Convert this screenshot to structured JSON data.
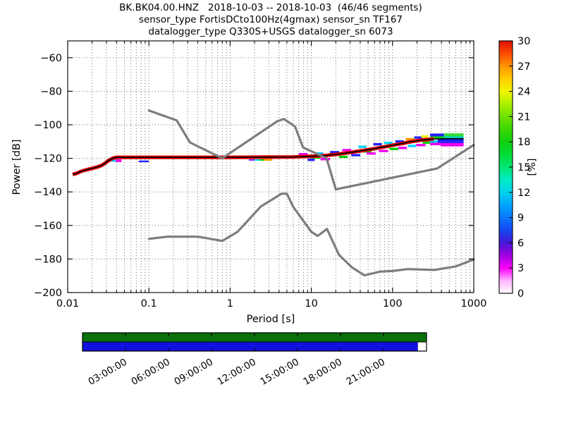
{
  "title": {
    "line1": "BK.BK04.00.HNZ   2018-10-03 -- 2018-10-03  (46/46 segments)",
    "line2": "sensor_type FortisDCto100Hz(4gmax) sensor_sn TF167",
    "line3": "datalogger_type Q330S+USGS datalogger_sn 6073"
  },
  "axes": {
    "xlabel": "Period [s]",
    "ylabel": "Power [dB]"
  },
  "colorbar": {
    "label": "[%]",
    "ticks": [
      0,
      3,
      6,
      9,
      12,
      15,
      18,
      21,
      24,
      27,
      30
    ],
    "gradient_stops": [
      {
        "v": 0.0,
        "c": "#ffffff"
      },
      {
        "v": 1.5,
        "c": "#ffb3ff"
      },
      {
        "v": 3.0,
        "c": "#fa00fa"
      },
      {
        "v": 4.5,
        "c": "#a000e0"
      },
      {
        "v": 6.0,
        "c": "#4616d6"
      },
      {
        "v": 7.5,
        "c": "#1446f0"
      },
      {
        "v": 9.0,
        "c": "#0a78ff"
      },
      {
        "v": 10.5,
        "c": "#00a2ff"
      },
      {
        "v": 12.0,
        "c": "#00d2eb"
      },
      {
        "v": 13.5,
        "c": "#00ebc3"
      },
      {
        "v": 15.0,
        "c": "#00e673"
      },
      {
        "v": 16.5,
        "c": "#00dc37"
      },
      {
        "v": 18.0,
        "c": "#0fd00f"
      },
      {
        "v": 19.5,
        "c": "#3cd700"
      },
      {
        "v": 21.0,
        "c": "#6ee100"
      },
      {
        "v": 22.5,
        "c": "#aaf000"
      },
      {
        "v": 24.0,
        "c": "#f5f500"
      },
      {
        "v": 25.5,
        "c": "#ffcd00"
      },
      {
        "v": 27.0,
        "c": "#ff9600"
      },
      {
        "v": 28.5,
        "c": "#ff4b00"
      },
      {
        "v": 30.0,
        "c": "#dc0f00"
      }
    ]
  },
  "chart_data": {
    "type": "heatmap",
    "title": "BK.BK04.00.HNZ PPSD 2018-10-03, 46/46 half-hour segments",
    "xlabel": "Period [s]",
    "ylabel": "Power [dB]",
    "xscale": "log",
    "xlim": [
      0.01,
      1000
    ],
    "ylim": [
      -200,
      -50
    ],
    "xticks": {
      "values": [
        0.01,
        0.1,
        1,
        10,
        100,
        1000
      ],
      "labels": [
        "0.01",
        "0.1",
        "1",
        "10",
        "100",
        "1000"
      ]
    },
    "yticks": {
      "values": [
        -60,
        -80,
        -100,
        -120,
        -140,
        -160,
        -180,
        -200
      ],
      "labels": [
        "−60",
        "−80",
        "−100",
        "−120",
        "−140",
        "−160",
        "−180",
        "−200"
      ]
    },
    "grid": true,
    "noise_models": {
      "color": "#7d7d7d",
      "nhnm": [
        [
          0.1,
          -91.5
        ],
        [
          0.22,
          -97.4
        ],
        [
          0.32,
          -110.5
        ],
        [
          0.8,
          -120.0
        ],
        [
          3.8,
          -97.9
        ],
        [
          4.6,
          -96.5
        ],
        [
          6.3,
          -101.0
        ],
        [
          7.9,
          -113.5
        ],
        [
          15.4,
          -120.0
        ],
        [
          20,
          -138.5
        ],
        [
          354.8,
          -126.0
        ],
        [
          1000,
          -112.0
        ]
      ],
      "nlnm": [
        [
          0.1,
          -168.0
        ],
        [
          0.17,
          -166.7
        ],
        [
          0.4,
          -166.7
        ],
        [
          0.8,
          -169.2
        ],
        [
          1.24,
          -163.7
        ],
        [
          2.4,
          -148.6
        ],
        [
          4.3,
          -141.1
        ],
        [
          5,
          -141.1
        ],
        [
          6,
          -149.0
        ],
        [
          10,
          -163.8
        ],
        [
          12,
          -166.2
        ],
        [
          15.6,
          -162.1
        ],
        [
          21.9,
          -177.5
        ],
        [
          31.6,
          -185.0
        ],
        [
          45,
          -189.7
        ],
        [
          70,
          -187.5
        ],
        [
          101,
          -187.1
        ],
        [
          154,
          -186.0
        ],
        [
          328,
          -186.5
        ],
        [
          600,
          -184.4
        ],
        [
          1000,
          -180.3
        ]
      ]
    },
    "mode_line": {
      "color": "#000000",
      "points": [
        [
          0.0115,
          -129.6
        ],
        [
          0.013,
          -128.9
        ],
        [
          0.0145,
          -127.8
        ],
        [
          0.016,
          -127.2
        ],
        [
          0.018,
          -126.5
        ],
        [
          0.02,
          -126.0
        ],
        [
          0.023,
          -125.2
        ],
        [
          0.026,
          -124.3
        ],
        [
          0.029,
          -122.8
        ],
        [
          0.032,
          -121.2
        ],
        [
          0.036,
          -119.9
        ],
        [
          0.04,
          -119.4
        ],
        [
          0.1,
          -119.4
        ],
        [
          1,
          -119.4
        ],
        [
          3,
          -119.3
        ],
        [
          6,
          -119.2
        ],
        [
          10,
          -118.8
        ],
        [
          15,
          -118.3
        ],
        [
          20,
          -117.7
        ],
        [
          30,
          -116.5
        ],
        [
          45,
          -115.2
        ],
        [
          60,
          -114.2
        ],
        [
          80,
          -113.1
        ],
        [
          100,
          -112.2
        ],
        [
          130,
          -111.2
        ],
        [
          160,
          -110.3
        ],
        [
          200,
          -109.5
        ],
        [
          250,
          -108.9
        ],
        [
          320,
          -108.5
        ],
        [
          450,
          -108.3
        ],
        [
          750,
          -108.3
        ]
      ]
    },
    "core_band": {
      "color": "#dd0000",
      "max_period": 320,
      "width_db": 2.2
    },
    "patches": [
      {
        "p0": 0.03,
        "p1": 0.034,
        "db0": -120.6,
        "db1": -122.0,
        "c": "#00cc00"
      },
      {
        "p0": 0.034,
        "p1": 0.039,
        "db0": -120.6,
        "db1": -122.0,
        "c": "#00d0ff"
      },
      {
        "p0": 0.039,
        "p1": 0.046,
        "db0": -120.6,
        "db1": -122.2,
        "c": "#ee00ee"
      },
      {
        "p0": 0.075,
        "p1": 0.1,
        "db0": -121.3,
        "db1": -122.3,
        "c": "#2222ff"
      },
      {
        "p0": 1.7,
        "p1": 2.0,
        "db0": -120.5,
        "db1": -121.4,
        "c": "#8822ee"
      },
      {
        "p0": 2.0,
        "p1": 2.3,
        "db0": -120.5,
        "db1": -121.4,
        "c": "#00d0ff"
      },
      {
        "p0": 2.3,
        "p1": 2.6,
        "db0": -120.5,
        "db1": -121.4,
        "c": "#00cc00"
      },
      {
        "p0": 2.6,
        "p1": 3.3,
        "db0": -120.5,
        "db1": -121.4,
        "c": "#ff9900"
      },
      {
        "p0": 7,
        "p1": 9,
        "db0": -116.8,
        "db1": -118.2,
        "c": "#ee00ee"
      },
      {
        "p0": 9,
        "p1": 11,
        "db0": -120.2,
        "db1": -121.6,
        "c": "#2222ff"
      },
      {
        "p0": 10,
        "p1": 13,
        "db0": -118.9,
        "db1": -120.2,
        "c": "#00cc00"
      },
      {
        "p0": 11,
        "p1": 14,
        "db0": -116.4,
        "db1": -117.8,
        "c": "#00d0ff"
      },
      {
        "p0": 13,
        "p1": 17,
        "db0": -119.8,
        "db1": -121.2,
        "c": "#ee00ee"
      },
      {
        "p0": 17,
        "p1": 22,
        "db0": -115.6,
        "db1": -117.0,
        "c": "#2222ff"
      },
      {
        "p0": 22,
        "p1": 28,
        "db0": -118.4,
        "db1": -119.8,
        "c": "#00cc00"
      },
      {
        "p0": 24,
        "p1": 31,
        "db0": -114.4,
        "db1": -115.8,
        "c": "#ee00ee"
      },
      {
        "p0": 31,
        "p1": 40,
        "db0": -117.4,
        "db1": -118.8,
        "c": "#2222ff"
      },
      {
        "p0": 38,
        "p1": 48,
        "db0": -112.4,
        "db1": -113.8,
        "c": "#00d0ff"
      },
      {
        "p0": 44,
        "p1": 55,
        "db0": -115.2,
        "db1": -116.6,
        "c": "#00cc00"
      },
      {
        "p0": 48,
        "p1": 62,
        "db0": -116.4,
        "db1": -117.8,
        "c": "#ee00ee"
      },
      {
        "p0": 58,
        "p1": 74,
        "db0": -110.9,
        "db1": -112.3,
        "c": "#2222ff"
      },
      {
        "p0": 68,
        "p1": 88,
        "db0": -114.9,
        "db1": -116.3,
        "c": "#ee00ee"
      },
      {
        "p0": 78,
        "p1": 100,
        "db0": -110.1,
        "db1": -111.5,
        "c": "#00d0ff"
      },
      {
        "p0": 92,
        "p1": 118,
        "db0": -113.7,
        "db1": -115.1,
        "c": "#00cc00"
      },
      {
        "p0": 108,
        "p1": 138,
        "db0": -109.2,
        "db1": -110.6,
        "c": "#2222ff"
      },
      {
        "p0": 118,
        "p1": 150,
        "db0": -113.1,
        "db1": -114.5,
        "c": "#ee00ee"
      },
      {
        "p0": 145,
        "p1": 185,
        "db0": -107.9,
        "db1": -109.3,
        "c": "#ff9900"
      },
      {
        "p0": 155,
        "p1": 195,
        "db0": -111.9,
        "db1": -113.3,
        "c": "#00d0ff"
      },
      {
        "p0": 185,
        "p1": 235,
        "db0": -106.9,
        "db1": -108.3,
        "c": "#2222ff"
      },
      {
        "p0": 195,
        "p1": 255,
        "db0": -111.4,
        "db1": -112.8,
        "c": "#ee00ee"
      },
      {
        "p0": 225,
        "p1": 275,
        "db0": -106.3,
        "db1": -107.7,
        "c": "#eeee00"
      },
      {
        "p0": 235,
        "p1": 300,
        "db0": -109.9,
        "db1": -111.3,
        "c": "#00cc00"
      },
      {
        "p0": 290,
        "p1": 430,
        "db0": -105.2,
        "db1": -106.9,
        "c": "#2222ff"
      },
      {
        "p0": 430,
        "p1": 750,
        "db0": -105.1,
        "db1": -106.8,
        "c": "#33dd33"
      },
      {
        "p0": 290,
        "p1": 430,
        "db0": -106.9,
        "db1": -108.6,
        "c": "#00cc00"
      },
      {
        "p0": 430,
        "p1": 750,
        "db0": -106.8,
        "db1": -108.5,
        "c": "#00ccaa"
      },
      {
        "p0": 295,
        "p1": 330,
        "db0": -107.6,
        "db1": -108.4,
        "c": "#ff9900"
      },
      {
        "p0": 290,
        "p1": 360,
        "db0": -109.2,
        "db1": -110.7,
        "c": "#00d0ff"
      },
      {
        "p0": 360,
        "p1": 750,
        "db0": -108.5,
        "db1": -110.9,
        "c": "#2222ff"
      },
      {
        "p0": 290,
        "p1": 390,
        "db0": -110.7,
        "db1": -112.2,
        "c": "#ee00ee"
      },
      {
        "p0": 390,
        "p1": 750,
        "db0": -110.9,
        "db1": -112.9,
        "c": "#ee00ee"
      }
    ],
    "timeline": {
      "hours_total": 24,
      "rows": [
        {
          "name": "data-coverage",
          "color": "#0b700b",
          "segments": [
            {
              "t0": 0,
              "t1": 24
            }
          ]
        },
        {
          "name": "psd-coverage",
          "color": "#1111dd",
          "segments": [
            {
              "t0": 0,
              "t1": 23.4
            }
          ]
        }
      ],
      "tick_hours": [
        3,
        6,
        9,
        12,
        15,
        18,
        21
      ],
      "tick_labels": [
        "03:00:00",
        "06:00:00",
        "09:00:00",
        "12:00:00",
        "15:00:00",
        "18:00:00",
        "21:00:00"
      ]
    }
  }
}
